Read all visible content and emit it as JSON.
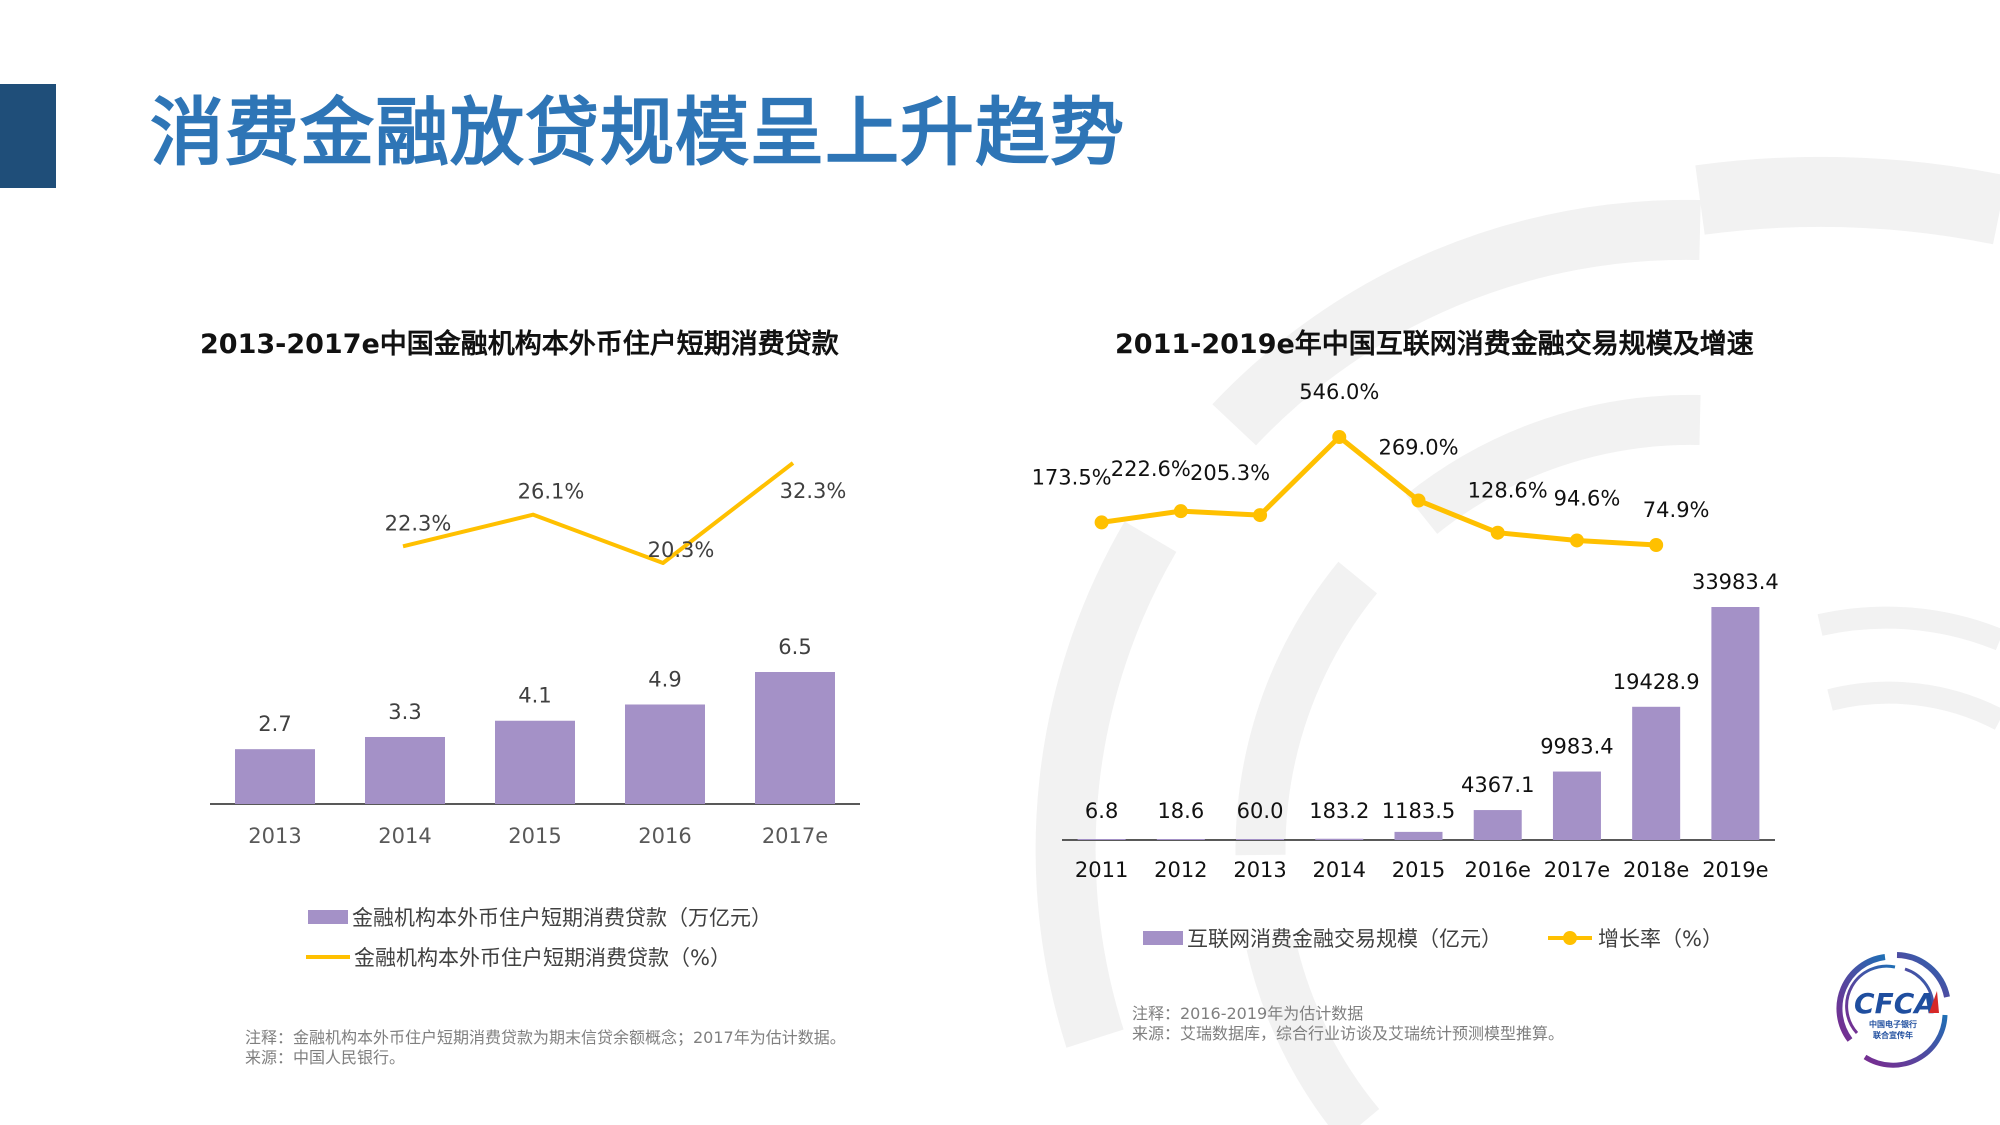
{
  "page": {
    "title": "消费金融放贷规模呈上升趋势",
    "colors": {
      "title": "#2e75b6",
      "accent_bar": "#1f4e79",
      "bar": "#a491c7",
      "line": "#ffc000",
      "text": "#404040"
    }
  },
  "chart_data": [
    {
      "type": "bar",
      "title": "2013-2017e中国金融机构本外币住户短期消费贷款",
      "categories": [
        "2013",
        "2014",
        "2015",
        "2016",
        "2017e"
      ],
      "series": [
        {
          "name": "金融机构本外币住户短期消费贷款（万亿元）",
          "kind": "bar",
          "values": [
            2.7,
            3.3,
            4.1,
            4.9,
            6.5
          ],
          "labels": [
            "2.7",
            "3.3",
            "4.1",
            "4.9",
            "6.5"
          ]
        },
        {
          "name": "金融机构本外币住户短期消费贷款（%）",
          "kind": "line",
          "values": [
            null,
            22.3,
            26.1,
            20.3,
            32.3
          ],
          "labels": [
            "",
            "22.3%",
            "26.1%",
            "20.3%",
            "32.3%"
          ]
        }
      ],
      "xlabel": "",
      "ylabel": "",
      "grid": false,
      "legend": "bottom",
      "legend_entries": [
        "金融机构本外币住户短期消费贷款（万亿元）",
        "金融机构本外币住户短期消费贷款（%）"
      ],
      "notes": [
        "注释：金融机构本外币住户短期消费贷款为期末信贷余额概念；2017年为估计数据。",
        "来源：中国人民银行。"
      ]
    },
    {
      "type": "bar",
      "title": "2011-2019e年中国互联网消费金融交易规模及增速",
      "categories": [
        "2011",
        "2012",
        "2013",
        "2014",
        "2015",
        "2016e",
        "2017e",
        "2018e",
        "2019e"
      ],
      "series": [
        {
          "name": "互联网消费金融交易规模（亿元）",
          "kind": "bar",
          "values": [
            6.8,
            18.6,
            60.0,
            183.2,
            1183.5,
            4367.1,
            9983.4,
            19428.9,
            33983.4
          ],
          "labels": [
            "6.8",
            "18.6",
            "60.0",
            "183.2",
            "1183.5",
            "4367.1",
            "9983.4",
            "19428.9",
            "33983.4"
          ]
        },
        {
          "name": "增长率（%）",
          "kind": "line",
          "values": [
            null,
            173.5,
            222.6,
            205.3,
            546.0,
            269.0,
            128.6,
            94.6,
            74.9
          ],
          "labels": [
            "",
            "173.5%",
            "222.6%",
            "205.3%",
            "546.0%",
            "269.0%",
            "128.6%",
            "94.6%",
            "74.9%"
          ]
        }
      ],
      "xlabel": "",
      "ylabel": "",
      "grid": false,
      "legend": "bottom",
      "legend_entries": [
        "互联网消费金融交易规模（亿元）",
        "增长率（%）"
      ],
      "notes": [
        "注释：2016-2019年为估计数据",
        "来源：艾瑞数据库，综合行业访谈及艾瑞统计预测模型推算。"
      ]
    }
  ],
  "logo": {
    "text": "CFCA",
    "subtitle_1": "中国电子银行",
    "subtitle_2": "联合宣传年"
  }
}
